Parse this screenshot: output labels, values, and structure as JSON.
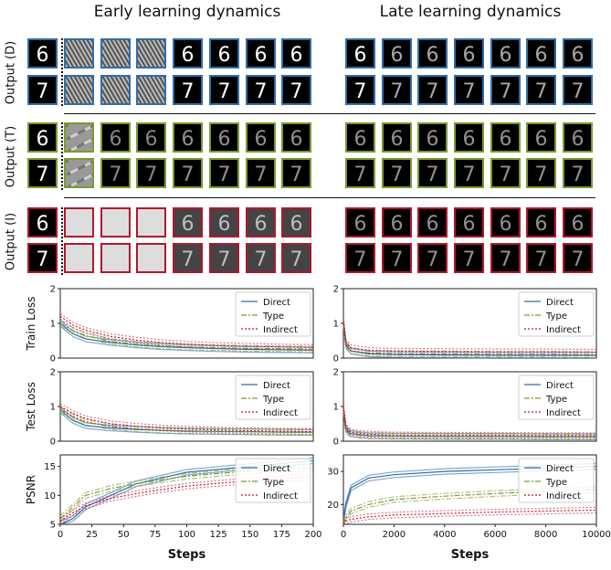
{
  "titles": {
    "left": "Early learning dynamics",
    "right": "Late learning dynamics"
  },
  "rows": [
    {
      "label": "Output (D)",
      "color": "#2f6ea8"
    },
    {
      "label": "Output (T)",
      "color": "#7a9b2e"
    },
    {
      "label": "Output (I)",
      "color": "#b0172f"
    }
  ],
  "digits": [
    "6",
    "7"
  ],
  "colors": {
    "direct": "#2f6ea8",
    "type": "#7a9b2e",
    "indirect": "#c8102e"
  },
  "legend": [
    "Direct",
    "Type",
    "Indirect"
  ],
  "chart_data": [
    {
      "type": "line",
      "panel": "early-train",
      "ylabel": "Train Loss",
      "x": [
        0,
        10,
        20,
        40,
        60,
        80,
        100,
        125,
        150,
        175,
        200
      ],
      "xlim": [
        0,
        200
      ],
      "ylim": [
        0,
        2
      ],
      "yticks": [
        0,
        1,
        2
      ],
      "series": [
        {
          "name": "Direct",
          "values": [
            1.0,
            0.7,
            0.55,
            0.45,
            0.38,
            0.33,
            0.3,
            0.27,
            0.25,
            0.24,
            0.23
          ]
        },
        {
          "name": "Type",
          "values": [
            1.0,
            0.8,
            0.65,
            0.48,
            0.4,
            0.35,
            0.32,
            0.3,
            0.28,
            0.27,
            0.26
          ]
        },
        {
          "name": "Indirect",
          "values": [
            1.2,
            0.95,
            0.8,
            0.62,
            0.52,
            0.45,
            0.4,
            0.36,
            0.34,
            0.32,
            0.31
          ]
        }
      ]
    },
    {
      "type": "line",
      "panel": "late-train",
      "x": [
        0,
        100,
        300,
        1000,
        2000,
        4000,
        6000,
        8000,
        10000
      ],
      "xlim": [
        0,
        10000
      ],
      "ylim": [
        0,
        2
      ],
      "yticks": [
        0,
        1,
        2
      ],
      "series": [
        {
          "name": "Direct",
          "values": [
            1.0,
            0.4,
            0.2,
            0.12,
            0.1,
            0.09,
            0.08,
            0.08,
            0.08
          ]
        },
        {
          "name": "Type",
          "values": [
            1.0,
            0.35,
            0.2,
            0.15,
            0.13,
            0.12,
            0.11,
            0.11,
            0.1
          ]
        },
        {
          "name": "Indirect",
          "values": [
            1.1,
            0.45,
            0.3,
            0.22,
            0.2,
            0.19,
            0.18,
            0.18,
            0.17
          ]
        }
      ]
    },
    {
      "type": "line",
      "panel": "early-test",
      "ylabel": "Test Loss",
      "x": [
        0,
        10,
        20,
        40,
        60,
        80,
        100,
        125,
        150,
        175,
        200
      ],
      "xlim": [
        0,
        200
      ],
      "ylim": [
        0,
        2
      ],
      "yticks": [
        0,
        1,
        2
      ],
      "series": [
        {
          "name": "Direct",
          "values": [
            0.9,
            0.6,
            0.45,
            0.38,
            0.34,
            0.31,
            0.29,
            0.28,
            0.27,
            0.26,
            0.26
          ]
        },
        {
          "name": "Type",
          "values": [
            0.9,
            0.7,
            0.55,
            0.42,
            0.36,
            0.32,
            0.3,
            0.28,
            0.27,
            0.26,
            0.25
          ]
        },
        {
          "name": "Indirect",
          "values": [
            1.0,
            0.8,
            0.65,
            0.5,
            0.43,
            0.38,
            0.35,
            0.32,
            0.3,
            0.29,
            0.28
          ]
        }
      ]
    },
    {
      "type": "line",
      "panel": "late-test",
      "x": [
        0,
        100,
        300,
        1000,
        2000,
        4000,
        6000,
        8000,
        10000
      ],
      "xlim": [
        0,
        10000
      ],
      "ylim": [
        0,
        2
      ],
      "yticks": [
        0,
        1,
        2
      ],
      "series": [
        {
          "name": "Direct",
          "values": [
            0.9,
            0.35,
            0.22,
            0.16,
            0.15,
            0.14,
            0.14,
            0.13,
            0.13
          ]
        },
        {
          "name": "Type",
          "values": [
            0.9,
            0.3,
            0.2,
            0.15,
            0.14,
            0.13,
            0.13,
            0.12,
            0.12
          ]
        },
        {
          "name": "Indirect",
          "values": [
            1.0,
            0.4,
            0.26,
            0.2,
            0.18,
            0.17,
            0.17,
            0.16,
            0.16
          ]
        }
      ]
    },
    {
      "type": "line",
      "panel": "early-psnr",
      "ylabel": "PSNR",
      "xlabel": "Steps",
      "x": [
        0,
        10,
        20,
        40,
        60,
        80,
        100,
        125,
        150,
        175,
        200
      ],
      "xlim": [
        0,
        200
      ],
      "ylim": [
        5,
        17
      ],
      "yticks": [
        5,
        10,
        15
      ],
      "xticks": [
        0,
        25,
        50,
        75,
        100,
        125,
        150,
        175,
        200
      ],
      "series": [
        {
          "name": "Direct",
          "values": [
            5,
            6,
            8,
            10,
            12,
            13,
            14,
            14.5,
            15,
            15.5,
            16
          ]
        },
        {
          "name": "Type",
          "values": [
            6,
            8,
            10,
            11.2,
            12,
            12.7,
            13.3,
            13.8,
            14.2,
            14.5,
            14.8
          ]
        },
        {
          "name": "Indirect",
          "values": [
            5.5,
            7,
            8.2,
            9.5,
            10.3,
            11,
            11.6,
            12.1,
            12.5,
            12.9,
            13.2
          ]
        }
      ]
    },
    {
      "type": "line",
      "panel": "late-psnr",
      "xlabel": "Steps",
      "x": [
        0,
        100,
        300,
        1000,
        2000,
        4000,
        6000,
        8000,
        10000
      ],
      "xlim": [
        0,
        10000
      ],
      "ylim": [
        14,
        35
      ],
      "yticks": [
        20,
        30
      ],
      "xticks": [
        0,
        2000,
        4000,
        6000,
        8000,
        10000
      ],
      "series": [
        {
          "name": "Direct",
          "values": [
            15,
            20,
            25,
            28,
            29,
            30,
            30.5,
            31,
            31.5
          ]
        },
        {
          "name": "Type",
          "values": [
            14,
            16,
            18,
            20,
            21.5,
            22.5,
            23.3,
            24,
            24.5
          ]
        },
        {
          "name": "Indirect",
          "values": [
            14,
            15,
            15.5,
            16.3,
            16.8,
            17.3,
            17.7,
            18,
            18.3
          ]
        }
      ]
    }
  ]
}
